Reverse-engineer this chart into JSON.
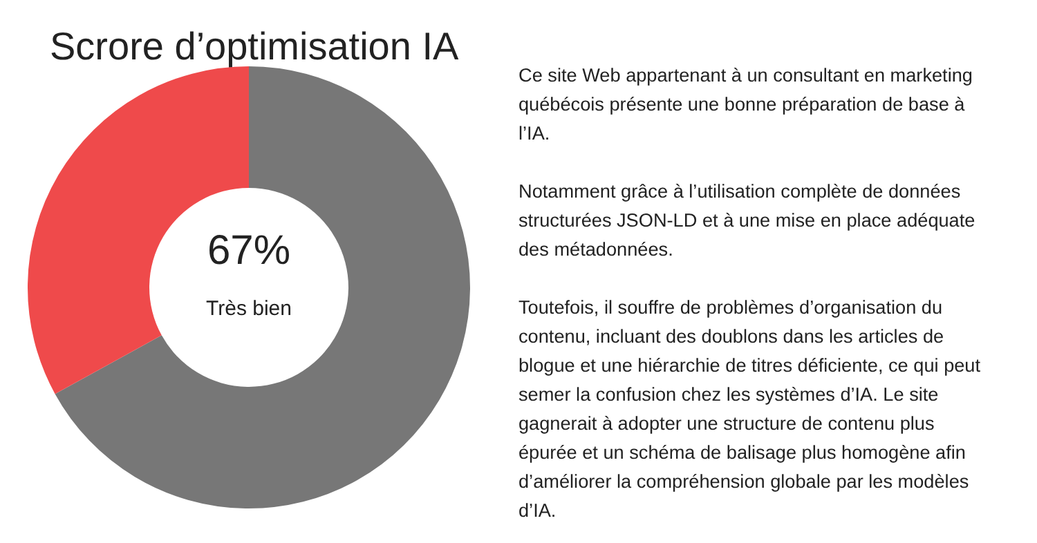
{
  "chart_data": {
    "type": "donut",
    "title": "Scrore d’optimisation IA",
    "categories": [
      null,
      null
    ],
    "values": [
      67,
      33
    ],
    "colors": [
      "#777777",
      "#ef4a4b"
    ],
    "value_labels": [
      "67%",
      null
    ],
    "legend": false,
    "annotations": [
      "Très bien",
      "Ce site Web appartenant à un consultant en marketing québécois présente une bonne préparation de base à l’IA.",
      "Notamment grâce à l’utilisation complète de données structurées JSON-LD et à une mise en place adéquate des métadonnées.",
      "Toutefois, il souffre de problèmes d’organisation du contenu, incluant des doublons dans les articles de blogue et une hiérarchie de titres déficiente, ce qui peut semer la confusion chez les systèmes d’IA. Le site gagnerait à adopter une structure de contenu plus épurée et un schéma de balisage plus homogène afin d’améliorer la compréhension globale par les modèles d’IA."
    ]
  }
}
